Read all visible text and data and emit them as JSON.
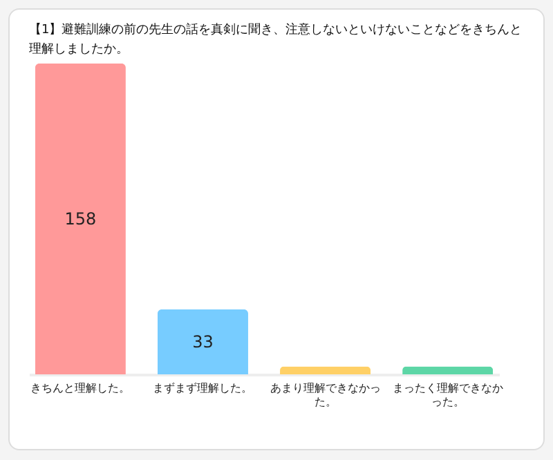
{
  "chart_data": {
    "type": "bar",
    "title": "【1】避難訓練の前の先生の話を真剣に聞き、注意しないといけないことなどをきちんと理解しましたか。",
    "categories": [
      "きちんと理解した。",
      "まずまず理解した。",
      "あまり理解できなかった。",
      "まったく理解できなかった。"
    ],
    "values": [
      158,
      33,
      4,
      4
    ],
    "colors": [
      "#ff9999",
      "#77ccff",
      "#ffd066",
      "#5dd6a6"
    ],
    "value_labels": [
      "158",
      "33",
      null,
      null
    ]
  }
}
